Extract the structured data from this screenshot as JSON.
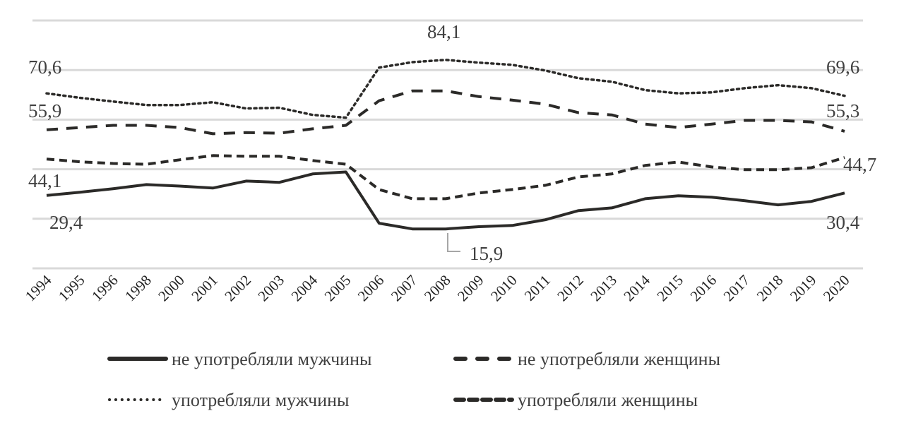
{
  "chart_data": {
    "type": "line",
    "title": "",
    "xlabel": "",
    "ylabel": "",
    "ylim": [
      0,
      100
    ],
    "grid": true,
    "gridlines": [
      0,
      20,
      40,
      60,
      80,
      100
    ],
    "legend_position": "bottom",
    "categories": [
      "1994",
      "1995",
      "1996",
      "1998",
      "2000",
      "2001",
      "2002",
      "2003",
      "2004",
      "2005",
      "2006",
      "2007",
      "2008",
      "2009",
      "2010",
      "2011",
      "2012",
      "2013",
      "2014",
      "2015",
      "2016",
      "2017",
      "2018",
      "2019",
      "2020"
    ],
    "series": [
      {
        "name": "не употребляли  мужчины",
        "style": "solid",
        "color": "#2b2a28",
        "values": [
          29.4,
          30.7,
          32.1,
          33.8,
          33.2,
          32.4,
          35.2,
          34.7,
          38.1,
          38.9,
          18.2,
          15.9,
          15.9,
          16.8,
          17.3,
          19.6,
          23.3,
          24.4,
          28.1,
          29.3,
          28.7,
          27.3,
          25.6,
          27.0,
          30.4
        ]
      },
      {
        "name": "не употребляли  женщины",
        "style": "long-dash",
        "color": "#2b2a28",
        "values": [
          55.9,
          56.8,
          57.7,
          57.7,
          56.8,
          54.3,
          54.8,
          54.5,
          56.3,
          57.7,
          67.6,
          71.6,
          71.6,
          69.3,
          67.9,
          66.2,
          62.8,
          61.9,
          58.2,
          56.8,
          58.2,
          59.7,
          59.7,
          59.1,
          55.3
        ]
      },
      {
        "name": "употребляли  мужчины",
        "style": "dotted",
        "color": "#2b2a28",
        "values": [
          70.6,
          68.8,
          67.3,
          65.9,
          65.9,
          67.0,
          64.5,
          64.8,
          61.9,
          60.8,
          81.0,
          83.2,
          84.1,
          83.0,
          82.1,
          79.8,
          76.7,
          75.3,
          71.9,
          70.6,
          71.0,
          72.7,
          73.9,
          72.7,
          69.6
        ]
      },
      {
        "name": "употребляли  женщины",
        "style": "short-dash",
        "color": "#2b2a28",
        "values": [
          44.1,
          43.0,
          42.3,
          42.0,
          43.8,
          45.5,
          45.2,
          45.2,
          43.5,
          42.0,
          31.8,
          28.1,
          28.1,
          30.4,
          31.8,
          33.5,
          36.9,
          38.1,
          41.5,
          42.9,
          40.9,
          39.8,
          39.8,
          40.6,
          44.7
        ]
      }
    ],
    "annotations": [
      "70,6",
      "55,9",
      "44,1",
      "29,4",
      "84,1",
      "15,9",
      "69,6",
      "55,3",
      "44,7",
      "30,4"
    ]
  }
}
